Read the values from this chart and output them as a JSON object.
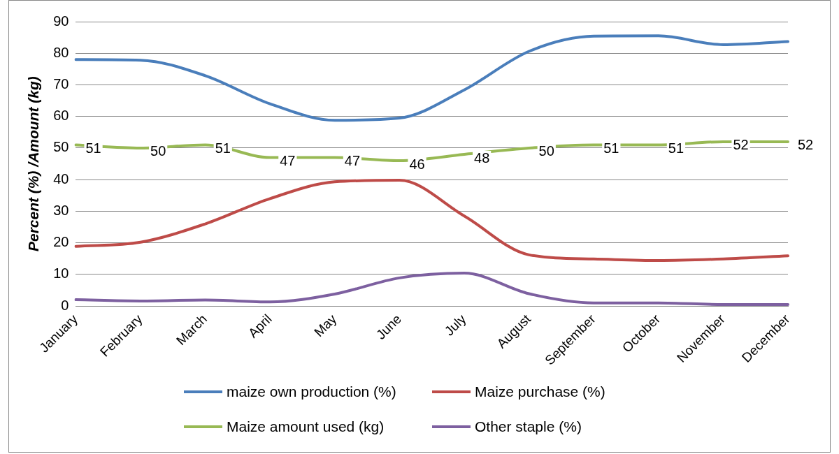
{
  "chart_data": {
    "type": "line",
    "ylabel": "Percent (%) /Amount (kg)",
    "categories": [
      "January",
      "February",
      "March",
      "April",
      "May",
      "June",
      "July",
      "August",
      "September",
      "October",
      "November",
      "December"
    ],
    "ylim": [
      0,
      90
    ],
    "yticks": [
      0,
      10,
      20,
      30,
      40,
      50,
      60,
      70,
      80,
      90
    ],
    "grid": "y",
    "legend": "bottom",
    "marker": "none",
    "line_style": "solid",
    "series": [
      {
        "name": "maize own production (%)",
        "color": "#4a7ebb",
        "values": [
          78,
          77.8,
          72.9,
          64,
          58.8,
          59.5,
          68.4,
          80.6,
          85.4,
          85.5,
          82.7,
          83.7
        ]
      },
      {
        "name": "Maize purchase (%)",
        "color": "#be4b48",
        "values": [
          18.9,
          20.2,
          26,
          34,
          39.3,
          39.8,
          28.5,
          16.2,
          14.9,
          14.4,
          14.9,
          15.9
        ]
      },
      {
        "name": "Maize amount used (kg)",
        "color": "#98b954",
        "values": [
          51,
          50,
          51,
          47,
          47,
          46,
          48,
          50,
          51,
          51,
          52,
          52
        ],
        "value_labels": [
          "51",
          "50",
          "51",
          "47",
          "47",
          "46",
          "48",
          "50",
          "51",
          "51",
          "52",
          "52"
        ]
      },
      {
        "name": "Other staple (%)",
        "color": "#7d60a0",
        "values": [
          2,
          1.6,
          1.9,
          1.3,
          3.8,
          8.9,
          10.4,
          3.9,
          1,
          1,
          0.5,
          0.5
        ]
      }
    ]
  }
}
